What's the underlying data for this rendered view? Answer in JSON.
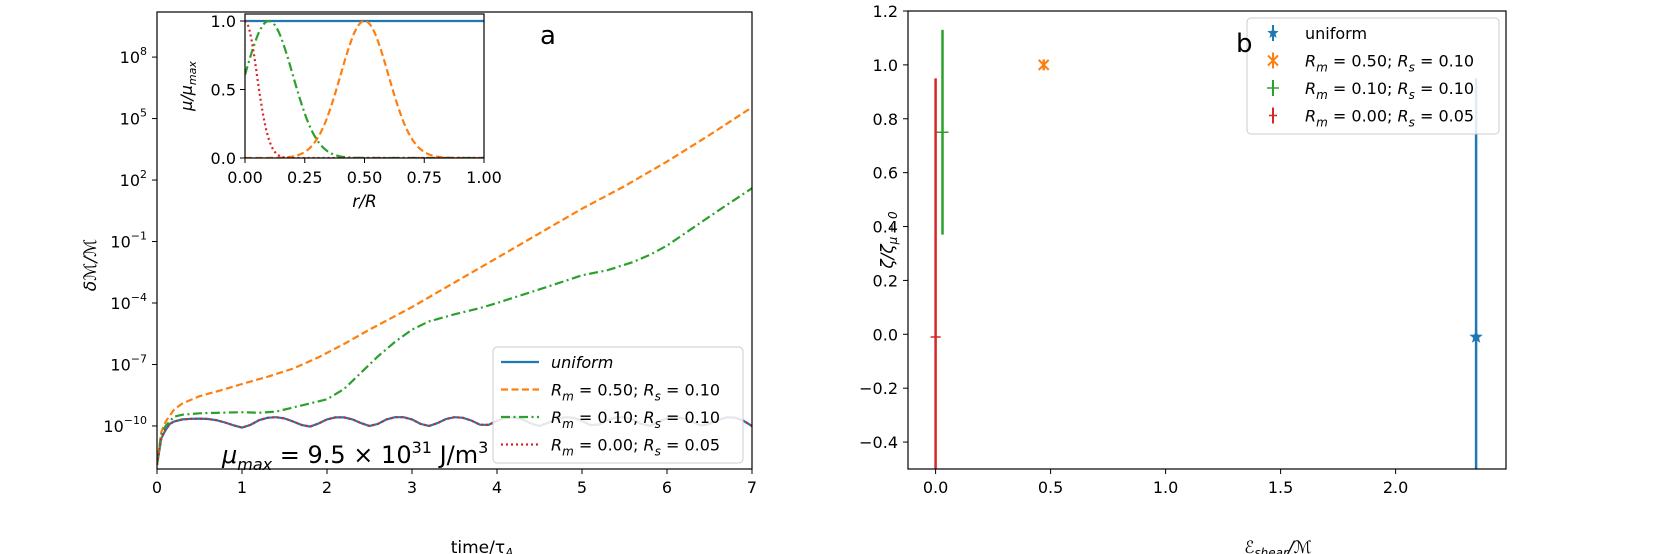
{
  "colors": {
    "uniform": "#1f77b4",
    "rm050": "#ff7f0e",
    "rm010": "#2ca02c",
    "rm000": "#d62728",
    "axis": "#000000",
    "legend_border": "#cccccc"
  },
  "panel_a": {
    "panel_label": "a",
    "annotation_main": "μ",
    "annotation_sub": "max",
    "annotation_rest": " = 9.5 × 10",
    "annotation_exp": "31",
    "annotation_unit": " J/m",
    "annotation_unit_exp": "3",
    "xlabel_main": "time/τ",
    "xlabel_sub": "A",
    "ylabel": "δℳ/ℳ",
    "legend": [
      {
        "key": "uniform",
        "main": "uniform",
        "italic": true
      },
      {
        "key": "rm050",
        "parts": [
          "R",
          "m",
          " = 0.50; ",
          "R",
          "s",
          " = 0.10"
        ]
      },
      {
        "key": "rm010",
        "parts": [
          "R",
          "m",
          " = 0.10; ",
          "R",
          "s",
          " = 0.10"
        ]
      },
      {
        "key": "rm000",
        "parts": [
          "R",
          "m",
          " = 0.00; ",
          "R",
          "s",
          " = 0.05"
        ]
      }
    ]
  },
  "panel_a_inset": {
    "xlabel": "r/R",
    "ylabel_main": "μ/μ",
    "ylabel_sub": "max"
  },
  "panel_b": {
    "panel_label": "b",
    "xlabel_main": "ℰ",
    "xlabel_sub": "shear",
    "xlabel_rest": "/ℳ",
    "ylabel_main": "ζ/ζ",
    "ylabel_sub": "μ = 0",
    "legend": [
      {
        "key": "uniform",
        "text": "uniform",
        "marker": "star"
      },
      {
        "key": "rm050",
        "parts": [
          "R",
          "m",
          " = 0.50; ",
          "R",
          "s",
          " = 0.10"
        ],
        "marker": "x"
      },
      {
        "key": "rm010",
        "parts": [
          "R",
          "m",
          " = 0.10; ",
          "R",
          "s",
          " = 0.10"
        ],
        "marker": "plus"
      },
      {
        "key": "rm000",
        "parts": [
          "R",
          "m",
          " = 0.00; ",
          "R",
          "s",
          " = 0.05"
        ],
        "marker": "vline"
      }
    ]
  },
  "chart_data": [
    {
      "id": "a",
      "type": "line",
      "xlabel": "time/τA",
      "ylabel": "δℳ/ℳ",
      "yscale": "log",
      "xlim": [
        0,
        7
      ],
      "ylim_exp": [
        -12.1,
        10.2
      ],
      "x_ticks": [
        "0",
        "1",
        "2",
        "3",
        "4",
        "5",
        "6",
        "7"
      ],
      "y_ticks": [
        {
          "base": "10",
          "exp": "8",
          "value_exp": 8
        },
        {
          "base": "10",
          "exp": "5",
          "value_exp": 5
        },
        {
          "base": "10",
          "exp": "2",
          "value_exp": 2
        },
        {
          "base": "10",
          "exp": "−1",
          "value_exp": -1
        },
        {
          "base": "10",
          "exp": "−4",
          "value_exp": -4
        },
        {
          "base": "10",
          "exp": "−7",
          "value_exp": -7
        },
        {
          "base": "10",
          "exp": "−10",
          "value_exp": -10
        }
      ],
      "series": [
        {
          "name": "uniform",
          "key": "uniform",
          "style": "solid",
          "x": [
            0.0,
            0.05,
            0.1,
            0.15,
            0.2,
            0.3,
            0.4,
            0.5,
            0.6,
            0.7,
            0.8,
            0.9,
            1.0,
            1.1,
            1.2,
            1.3,
            1.4,
            1.5,
            1.6,
            1.7,
            1.8,
            1.9,
            2.0,
            2.1,
            2.2,
            2.3,
            2.4,
            2.5,
            2.6,
            2.7,
            2.8,
            2.9,
            3.0,
            3.1,
            3.2,
            3.3,
            3.4,
            3.5,
            3.6,
            3.7,
            3.8,
            3.9,
            4.0,
            4.1,
            4.2,
            4.3,
            4.4,
            4.5,
            4.6,
            4.7,
            4.8,
            4.9,
            5.0,
            5.1,
            5.2,
            5.3,
            5.4,
            5.5,
            5.6,
            5.7,
            5.8,
            5.9,
            6.0,
            6.1,
            6.2,
            6.3,
            6.4,
            6.5,
            6.6,
            6.7,
            6.8,
            6.9,
            7.0
          ],
          "y_exp": [
            -11.9,
            -10.6,
            -10.2,
            -9.9,
            -9.78,
            -9.68,
            -9.65,
            -9.64,
            -9.66,
            -9.72,
            -9.83,
            -9.97,
            -10.08,
            -9.95,
            -9.72,
            -9.6,
            -9.57,
            -9.63,
            -9.78,
            -9.95,
            -10.03,
            -9.88,
            -9.68,
            -9.58,
            -9.58,
            -9.68,
            -9.86,
            -10.0,
            -9.9,
            -9.68,
            -9.57,
            -9.57,
            -9.68,
            -9.9,
            -10.0,
            -9.86,
            -9.66,
            -9.57,
            -9.6,
            -9.74,
            -9.94,
            -9.95,
            -9.75,
            -9.6,
            -9.58,
            -9.68,
            -9.88,
            -10.0,
            -9.85,
            -9.65,
            -9.57,
            -9.6,
            -9.76,
            -9.96,
            -9.93,
            -9.72,
            -9.58,
            -9.57,
            -9.7,
            -9.9,
            -9.99,
            -9.8,
            -9.62,
            -9.57,
            -9.63,
            -9.8,
            -9.98,
            -9.9,
            -9.7,
            -9.58,
            -9.59,
            -9.75,
            -10.0
          ]
        },
        {
          "name": "Rm = 0.50; Rs = 0.10",
          "key": "rm050",
          "style": "dashed",
          "x": [
            0.0,
            0.05,
            0.1,
            0.2,
            0.3,
            0.5,
            0.8,
            1.0,
            1.3,
            1.6,
            1.9,
            2.2,
            2.5,
            3.0,
            3.5,
            4.0,
            4.5,
            5.0,
            5.5,
            6.0,
            6.5,
            7.0
          ],
          "y_exp": [
            -11.9,
            -10.3,
            -9.8,
            -9.2,
            -8.9,
            -8.55,
            -8.2,
            -7.95,
            -7.6,
            -7.2,
            -6.65,
            -6.0,
            -5.3,
            -4.2,
            -3.0,
            -1.8,
            -0.6,
            0.6,
            1.7,
            2.9,
            4.2,
            5.55
          ]
        },
        {
          "name": "Rm = 0.10; Rs = 0.10",
          "key": "rm010",
          "style": "dashdot",
          "x": [
            0.0,
            0.05,
            0.1,
            0.2,
            0.3,
            0.5,
            0.8,
            1.0,
            1.2,
            1.4,
            1.6,
            1.8,
            2.0,
            2.2,
            2.4,
            2.6,
            2.8,
            3.0,
            3.2,
            3.5,
            3.8,
            4.0,
            4.3,
            4.6,
            5.0,
            5.3,
            5.6,
            5.8,
            6.0,
            6.3,
            6.6,
            7.0
          ],
          "y_exp": [
            -11.9,
            -10.4,
            -10.0,
            -9.55,
            -9.45,
            -9.38,
            -9.35,
            -9.33,
            -9.36,
            -9.3,
            -9.1,
            -8.9,
            -8.7,
            -8.2,
            -7.4,
            -6.6,
            -5.9,
            -5.3,
            -4.9,
            -4.55,
            -4.25,
            -4.0,
            -3.6,
            -3.2,
            -2.65,
            -2.4,
            -2.0,
            -1.65,
            -1.2,
            -0.35,
            0.5,
            1.6
          ]
        },
        {
          "name": "Rm = 0.00; Rs = 0.05",
          "key": "rm000",
          "style": "dotted",
          "x": [
            0.0,
            0.05,
            0.1,
            0.15,
            0.2,
            0.3,
            0.4,
            0.5,
            0.6,
            0.7,
            0.8,
            0.9,
            1.0,
            1.1,
            1.2,
            1.3,
            1.4,
            1.5,
            1.6,
            1.7,
            1.8,
            1.9,
            2.0,
            2.1,
            2.2,
            2.3,
            2.4,
            2.5,
            2.6,
            2.7,
            2.8,
            2.9,
            3.0,
            3.1,
            3.2,
            3.3,
            3.4,
            3.5,
            3.6,
            3.7,
            3.8,
            3.9,
            4.0,
            4.1,
            4.2,
            4.3,
            4.4,
            4.5,
            4.6,
            4.7,
            4.8,
            4.9,
            5.0,
            5.1,
            5.2,
            5.3,
            5.4,
            5.5,
            5.6,
            5.7,
            5.8,
            5.9,
            6.0,
            6.1,
            6.2,
            6.3,
            6.4,
            6.5,
            6.6,
            6.7,
            6.8,
            6.9,
            7.0
          ],
          "y_exp": [
            -11.9,
            -10.6,
            -10.2,
            -9.9,
            -9.78,
            -9.68,
            -9.65,
            -9.64,
            -9.66,
            -9.72,
            -9.83,
            -9.97,
            -10.08,
            -9.95,
            -9.72,
            -9.6,
            -9.57,
            -9.63,
            -9.78,
            -9.95,
            -10.03,
            -9.88,
            -9.68,
            -9.58,
            -9.58,
            -9.68,
            -9.86,
            -10.0,
            -9.9,
            -9.68,
            -9.57,
            -9.57,
            -9.68,
            -9.9,
            -10.0,
            -9.86,
            -9.66,
            -9.57,
            -9.6,
            -9.74,
            -9.94,
            -9.95,
            -9.75,
            -9.6,
            -9.58,
            -9.68,
            -9.88,
            -10.0,
            -9.85,
            -9.65,
            -9.57,
            -9.6,
            -9.76,
            -9.96,
            -9.93,
            -9.72,
            -9.58,
            -9.57,
            -9.7,
            -9.9,
            -9.99,
            -9.8,
            -9.62,
            -9.57,
            -9.63,
            -9.8,
            -9.98,
            -9.9,
            -9.7,
            -9.58,
            -9.59,
            -9.75,
            -10.0
          ]
        }
      ]
    },
    {
      "id": "a_inset",
      "type": "line",
      "xlabel": "r/R",
      "ylabel": "μ/μmax",
      "xlim": [
        0,
        1
      ],
      "ylim": [
        0,
        1
      ],
      "x_ticks": [
        "0.00",
        "0.25",
        "0.50",
        "0.75",
        "1.00"
      ],
      "y_ticks": [
        "0.0",
        "0.5",
        "1.0"
      ],
      "series": [
        {
          "key": "uniform",
          "style": "solid",
          "x": [
            0.0,
            1.0
          ],
          "y": [
            1.0,
            1.0
          ]
        },
        {
          "key": "rm050",
          "style": "dashed",
          "gauss": {
            "center": 0.5,
            "sigma": 0.1
          }
        },
        {
          "key": "rm010",
          "style": "dashdot",
          "gauss": {
            "center": 0.1,
            "sigma": 0.1
          }
        },
        {
          "key": "rm000",
          "style": "dotted",
          "gauss": {
            "center": 0.0,
            "sigma": 0.05
          }
        }
      ]
    },
    {
      "id": "b",
      "type": "scatter",
      "xlabel": "ℰshear/ℳ",
      "ylabel": "ζ/ζμ=0",
      "xlim": [
        -0.12,
        2.48
      ],
      "ylim": [
        -0.5,
        1.2
      ],
      "x_ticks": [
        {
          "v": 0.0,
          "label": "0.0"
        },
        {
          "v": 0.5,
          "label": "0.5"
        },
        {
          "v": 1.0,
          "label": "1.0"
        },
        {
          "v": 1.5,
          "label": "1.5"
        },
        {
          "v": 2.0,
          "label": "2.0"
        }
      ],
      "y_ticks": [
        {
          "v": 1.2,
          "label": "1.2"
        },
        {
          "v": 1.0,
          "label": "1.0"
        },
        {
          "v": 0.8,
          "label": "0.8"
        },
        {
          "v": 0.6,
          "label": "0.6"
        },
        {
          "v": 0.4,
          "label": "0.4"
        },
        {
          "v": 0.2,
          "label": "0.2"
        },
        {
          "v": 0.0,
          "label": "0.0"
        },
        {
          "v": -0.2,
          "label": "−0.2"
        },
        {
          "v": -0.4,
          "label": "−0.4"
        }
      ],
      "points": [
        {
          "key": "uniform",
          "x": 2.35,
          "y": -0.01,
          "y_err_low": -0.5,
          "y_err_high": 0.95,
          "marker": "star"
        },
        {
          "key": "rm050",
          "x": 0.47,
          "y": 1.0,
          "y_err_low": 0.98,
          "y_err_high": 1.02,
          "marker": "x"
        },
        {
          "key": "rm010",
          "x": 0.03,
          "y": 0.75,
          "y_err_low": 0.37,
          "y_err_high": 1.13,
          "marker": "plus"
        },
        {
          "key": "rm000",
          "x": 0.0,
          "y": -0.01,
          "y_err_low": -0.5,
          "y_err_high": 0.95,
          "marker": "vline"
        }
      ]
    }
  ]
}
